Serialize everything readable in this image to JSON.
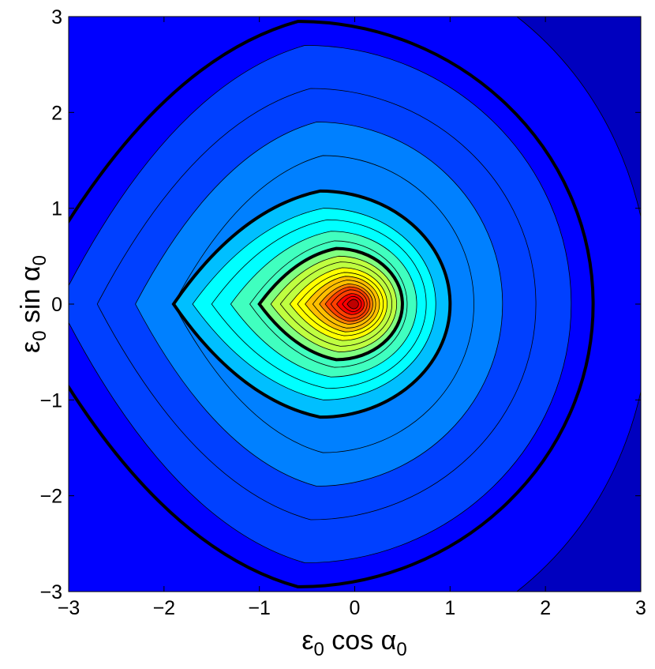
{
  "chart_data": {
    "type": "contour",
    "xlabel": {
      "main": "ε",
      "sub": "0",
      "mid": " cos α",
      "sub2": "0"
    },
    "ylabel": {
      "main": "ε",
      "sub": "0",
      "mid": " sin α",
      "sub2": "0"
    },
    "xlim": [
      -3,
      3
    ],
    "ylim": [
      -3,
      3
    ],
    "xticks": [
      -3,
      -2,
      -1,
      0,
      1,
      2,
      3
    ],
    "yticks": [
      -3,
      -2,
      -1,
      0,
      1,
      2,
      3
    ],
    "xtick_labels": [
      "−3",
      "−2",
      "−1",
      "0",
      "1",
      "2",
      "3"
    ],
    "ytick_labels": [
      "−3",
      "−2",
      "−1",
      "0",
      "1",
      "2",
      "3"
    ],
    "grid": false,
    "colormap": "jet",
    "colormap_colors": [
      "#0000bf",
      "#0000ff",
      "#0040ff",
      "#0080ff",
      "#00bfff",
      "#00ffff",
      "#40ffbf",
      "#80ff80",
      "#bfff40",
      "#ffff00",
      "#ffbf00",
      "#ff8000",
      "#ff4000",
      "#ff0000",
      "#bf0000"
    ],
    "center": [
      0,
      0
    ],
    "contour_levels": [
      {
        "right": 2.5,
        "left": -3.5,
        "top": 2.95,
        "bold": true
      },
      {
        "right": 2.27,
        "left": -3.1,
        "top": 2.7,
        "bold": false
      },
      {
        "right": 1.9,
        "left": -2.7,
        "top": 2.25,
        "bold": false
      },
      {
        "right": 1.55,
        "left": -2.3,
        "top": 1.9,
        "bold": false
      },
      {
        "right": 1.25,
        "left": -1.9,
        "top": 1.55,
        "bold": false
      },
      {
        "right": 1.0,
        "left": -1.9,
        "top": 1.18,
        "bold": true
      },
      {
        "right": 0.85,
        "left": -1.7,
        "top": 1.0,
        "bold": false
      },
      {
        "right": 0.75,
        "left": -1.5,
        "top": 0.88,
        "bold": false
      },
      {
        "right": 0.65,
        "left": -1.3,
        "top": 0.76,
        "bold": false
      },
      {
        "right": 0.55,
        "left": -1.1,
        "top": 0.66,
        "bold": false
      },
      {
        "right": 0.5,
        "left": -1.0,
        "top": 0.58,
        "bold": true
      },
      {
        "right": 0.44,
        "left": -0.88,
        "top": 0.5,
        "bold": false
      },
      {
        "right": 0.39,
        "left": -0.78,
        "top": 0.44,
        "bold": false
      },
      {
        "right": 0.34,
        "left": -0.68,
        "top": 0.38,
        "bold": false
      },
      {
        "right": 0.3,
        "left": -0.6,
        "top": 0.33,
        "bold": false
      },
      {
        "right": 0.26,
        "left": -0.52,
        "top": 0.29,
        "bold": false
      },
      {
        "right": 0.22,
        "left": -0.44,
        "top": 0.25,
        "bold": false
      },
      {
        "right": 0.19,
        "left": -0.37,
        "top": 0.21,
        "bold": false
      },
      {
        "right": 0.16,
        "left": -0.31,
        "top": 0.18,
        "bold": false
      },
      {
        "right": 0.13,
        "left": -0.25,
        "top": 0.15,
        "bold": false
      },
      {
        "right": 0.1,
        "left": -0.19,
        "top": 0.11,
        "bold": false
      },
      {
        "right": 0.07,
        "left": -0.13,
        "top": 0.08,
        "bold": false
      },
      {
        "right": 0.04,
        "left": -0.08,
        "top": 0.05,
        "bold": false
      }
    ]
  }
}
